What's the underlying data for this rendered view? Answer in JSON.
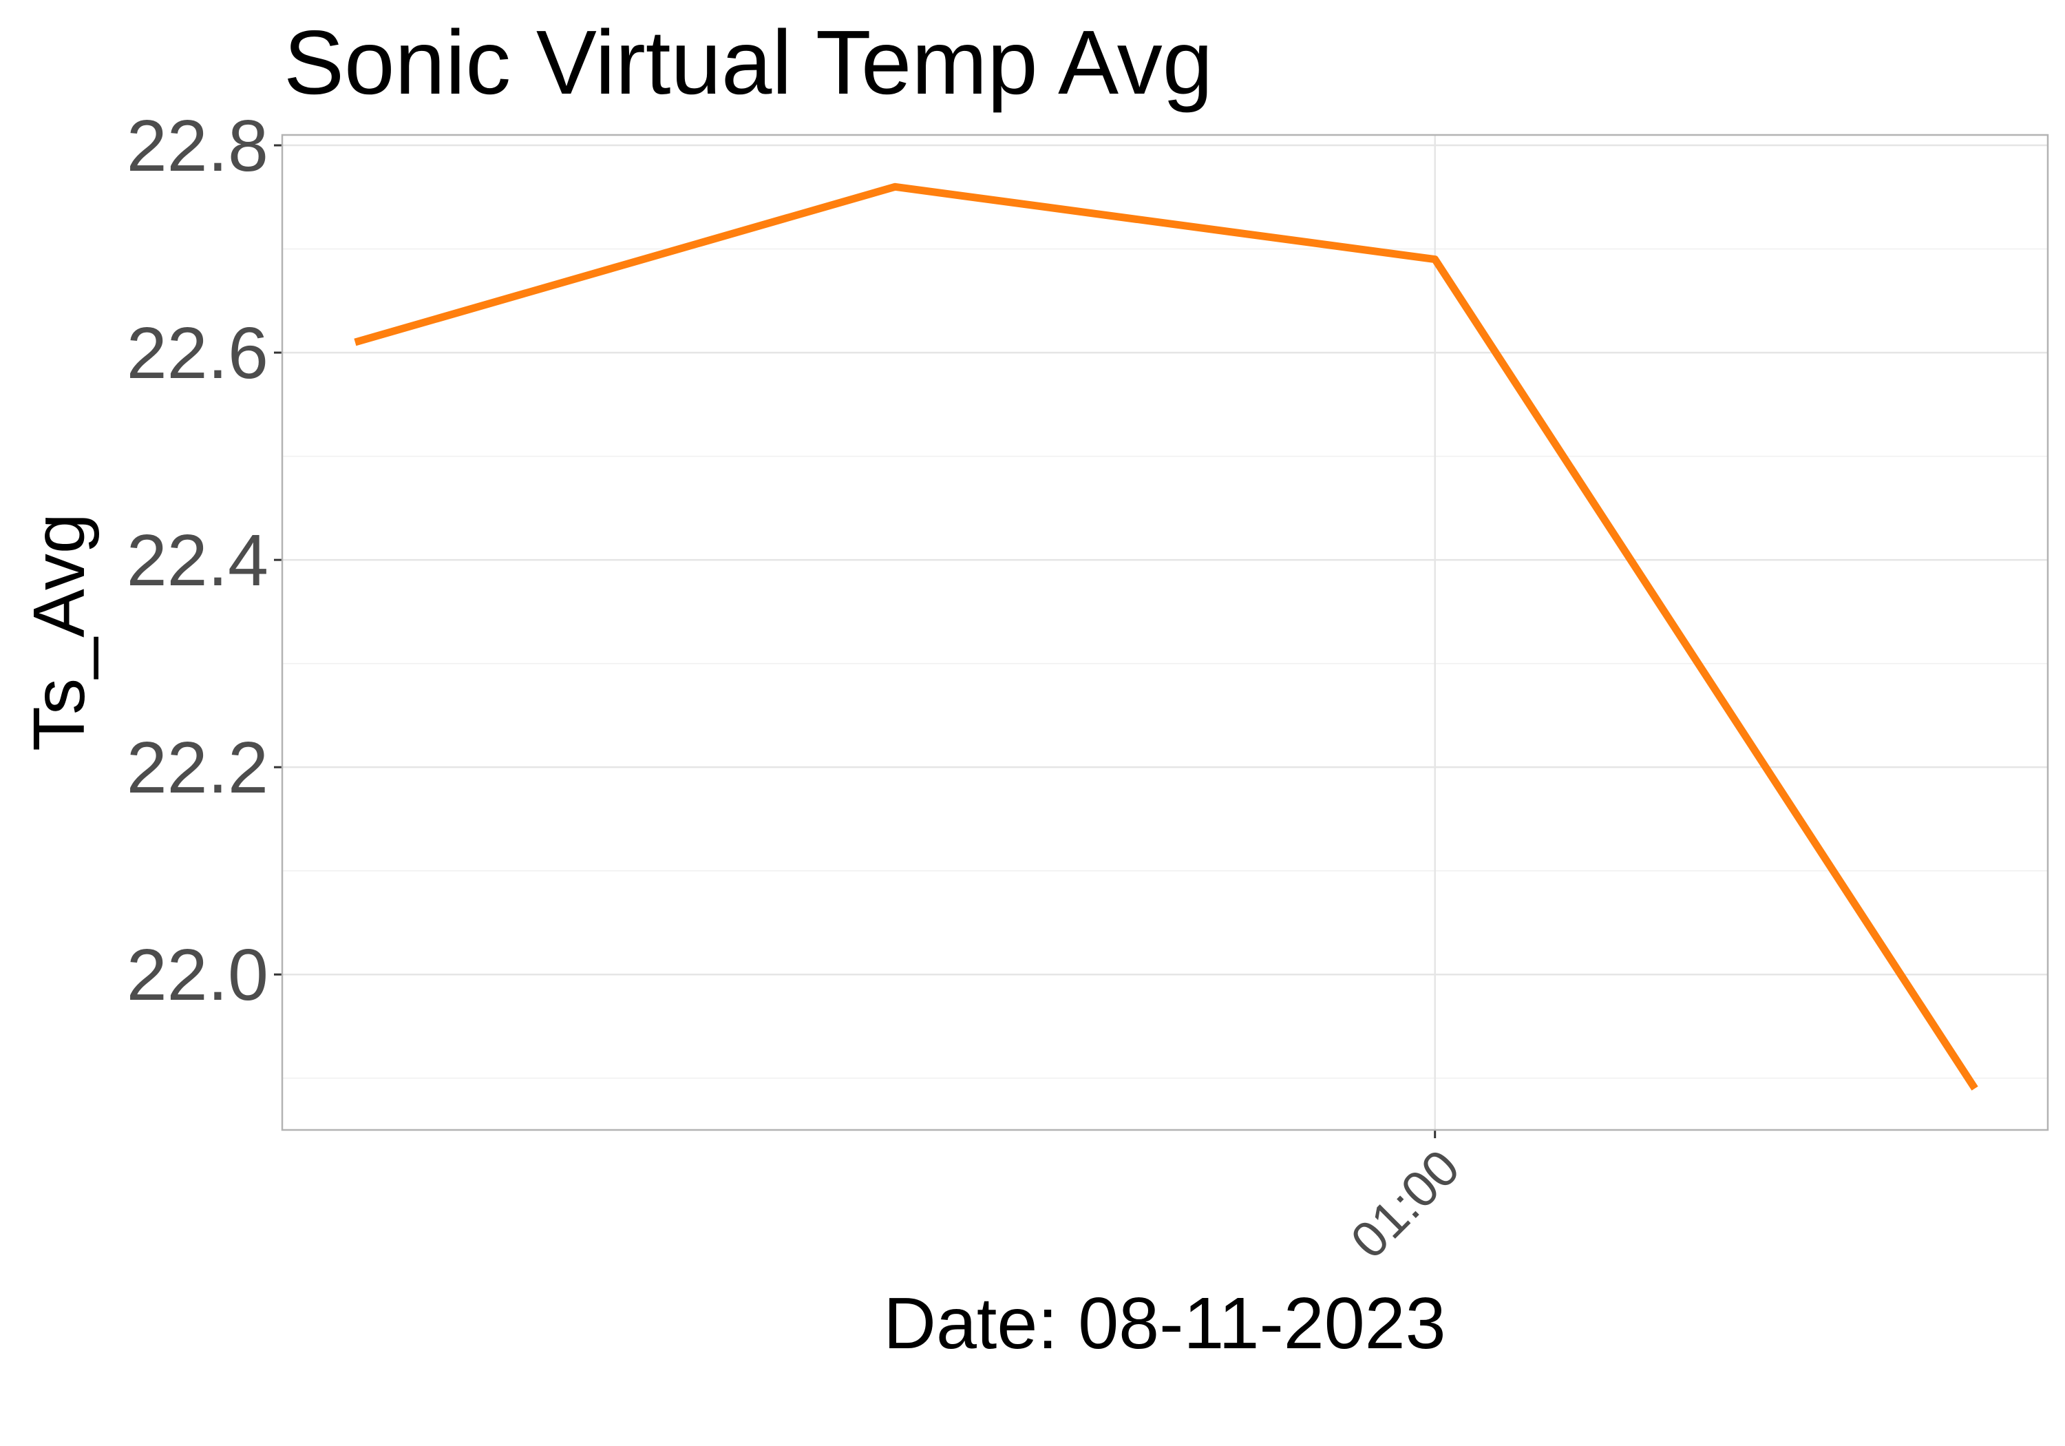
{
  "chart_data": {
    "type": "line",
    "title": "Sonic Virtual Temp Avg",
    "xlabel": "Date: 08-11-2023",
    "ylabel": "Ts_Avg",
    "x_tick_labels": [
      "01:00"
    ],
    "y_tick_labels": [
      "22.0",
      "22.2",
      "22.4",
      "22.6",
      "22.8"
    ],
    "ylim": [
      21.85,
      22.81
    ],
    "grid": true,
    "legend": "none",
    "series": [
      {
        "color": "#ff7f0e",
        "x": [
          "00:30",
          "00:45",
          "01:00",
          "01:15"
        ],
        "y": [
          22.61,
          22.76,
          22.69,
          21.89
        ]
      }
    ]
  }
}
